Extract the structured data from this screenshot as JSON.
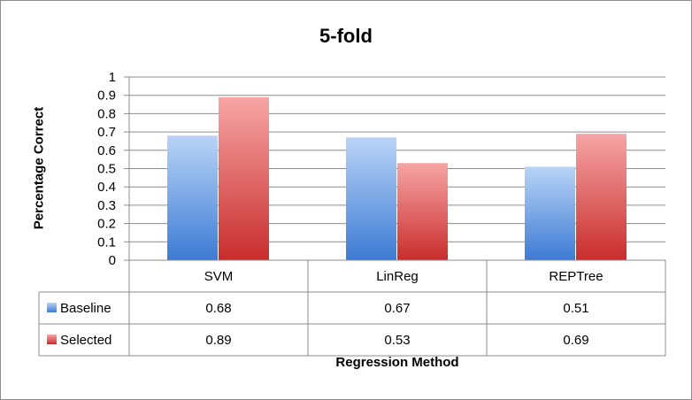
{
  "chart_data": {
    "type": "bar",
    "title": "5-fold",
    "xlabel": "Regression Method",
    "ylabel": "Percentage Correct",
    "categories": [
      "SVM",
      "LinReg",
      "REPTree"
    ],
    "series": [
      {
        "name": "Baseline",
        "values": [
          0.68,
          0.67,
          0.51
        ],
        "color": "#5b9bd5"
      },
      {
        "name": "Selected",
        "values": [
          0.89,
          0.53,
          0.69
        ],
        "color": "#e05c5c"
      }
    ],
    "ylim": [
      0,
      1
    ],
    "yticks": [
      0,
      0.1,
      0.2,
      0.3,
      0.4,
      0.5,
      0.6,
      0.7,
      0.8,
      0.9,
      1
    ],
    "ytick_labels": [
      "0",
      "0.1",
      "0.2",
      "0.3",
      "0.4",
      "0.5",
      "0.6",
      "0.7",
      "0.8",
      "0.9",
      "1"
    ],
    "data_table": [
      [
        "0.68",
        "0.67",
        "0.51"
      ],
      [
        "0.89",
        "0.53",
        "0.69"
      ]
    ],
    "grid": true,
    "legend": "data-table"
  }
}
